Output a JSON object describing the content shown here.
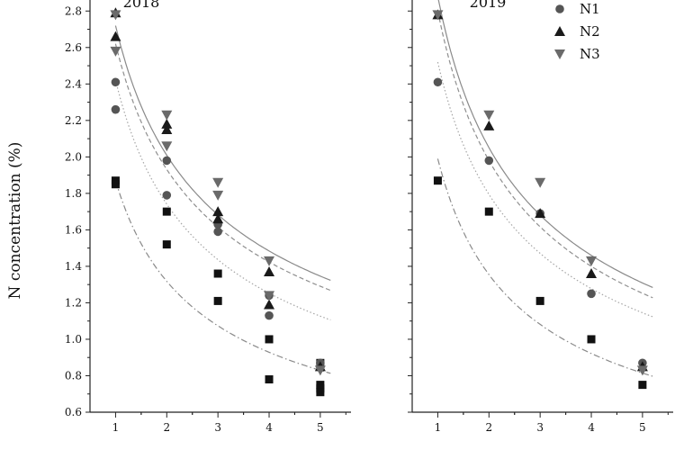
{
  "chart_data": {
    "type": "scatter",
    "ylabel": "N concentration (%)",
    "y_range": [
      0.6,
      2.9
    ],
    "y_ticks": [
      "0.6",
      "0.8",
      "1.0",
      "1.2",
      "1.4",
      "1.6",
      "1.8",
      "2.0",
      "2.2",
      "2.4",
      "2.6",
      "2.8"
    ],
    "x_ticks": [
      "1",
      "2",
      "3",
      "4",
      "5"
    ],
    "x_range": [
      0.5,
      5.6
    ],
    "legend": {
      "placement": "top-right",
      "entries": [
        {
          "label": "N1",
          "marker": "circle"
        },
        {
          "label": "N2",
          "marker": "triangle-up"
        },
        {
          "label": "N3",
          "marker": "triangle-down"
        }
      ]
    },
    "panels": [
      {
        "year_label": "2018",
        "series": [
          {
            "marker": "square",
            "x": [
              1,
              1,
              2,
              2,
              3,
              3,
              4,
              4,
              5,
              5,
              5,
              5
            ],
            "y": [
              1.87,
              1.85,
              1.7,
              1.52,
              1.36,
              1.21,
              1.0,
              0.78,
              0.87,
              0.75,
              0.73,
              0.71
            ]
          },
          {
            "name": "N1",
            "marker": "circle",
            "x": [
              1,
              1,
              2,
              2,
              3,
              3,
              4,
              4,
              5
            ],
            "y": [
              2.41,
              2.26,
              1.98,
              1.79,
              1.63,
              1.59,
              1.24,
              1.13,
              0.87
            ]
          },
          {
            "name": "N2",
            "marker": "triangle-up",
            "x": [
              1,
              1,
              2,
              2,
              3,
              3,
              4,
              4,
              5
            ],
            "y": [
              2.79,
              2.66,
              2.18,
              2.15,
              1.7,
              1.66,
              1.37,
              1.19,
              0.85
            ]
          },
          {
            "name": "N3",
            "marker": "triangle-down",
            "x": [
              1,
              1,
              2,
              2,
              3,
              3,
              4,
              4,
              5
            ],
            "y": [
              2.78,
              2.58,
              2.23,
              2.06,
              1.86,
              1.79,
              1.43,
              1.24,
              0.83
            ]
          }
        ],
        "fits": [
          {
            "style": "dash-dot",
            "a": 1.87,
            "b": 0.505
          },
          {
            "style": "dotted",
            "a": 2.42,
            "b": 0.475
          },
          {
            "style": "dashed",
            "a": 2.62,
            "b": 0.44
          },
          {
            "style": "solid",
            "a": 2.72,
            "b": 0.437
          }
        ]
      },
      {
        "year_label": "2019",
        "series": [
          {
            "marker": "square",
            "x": [
              1,
              2,
              3,
              4,
              5
            ],
            "y": [
              1.87,
              1.7,
              1.21,
              1.0,
              0.75
            ]
          },
          {
            "name": "N1",
            "marker": "circle",
            "x": [
              1,
              2,
              3,
              4,
              5
            ],
            "y": [
              2.41,
              1.98,
              1.69,
              1.25,
              0.87
            ]
          },
          {
            "name": "N2",
            "marker": "triangle-up",
            "x": [
              1,
              2,
              3,
              4,
              5
            ],
            "y": [
              2.78,
              2.17,
              1.69,
              1.36,
              0.85
            ]
          },
          {
            "name": "N3",
            "marker": "triangle-down",
            "x": [
              1,
              2,
              3,
              4,
              5
            ],
            "y": [
              2.78,
              2.23,
              1.86,
              1.43,
              0.83
            ]
          }
        ],
        "fits": [
          {
            "style": "dash-dot",
            "a": 1.99,
            "b": 0.555
          },
          {
            "style": "dotted",
            "a": 2.52,
            "b": 0.49
          },
          {
            "style": "dashed",
            "a": 2.8,
            "b": 0.5
          },
          {
            "style": "solid",
            "a": 2.88,
            "b": 0.49
          }
        ]
      }
    ]
  }
}
